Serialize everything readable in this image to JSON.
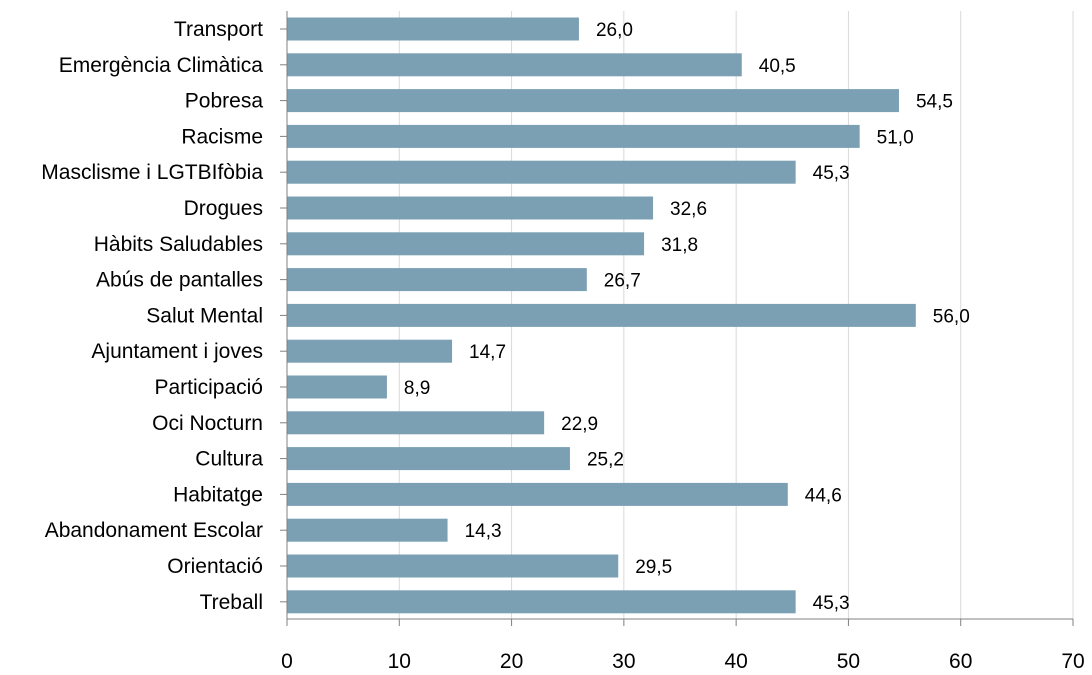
{
  "chart_data": {
    "type": "bar",
    "orientation": "horizontal",
    "categories": [
      "Transport",
      "Emergència Climàtica",
      "Pobresa",
      "Racisme",
      "Masclisme i LGTBIfòbia",
      "Drogues",
      "Hàbits Saludables",
      "Abús de pantalles",
      "Salut Mental",
      "Ajuntament i joves",
      "Participació",
      "Oci Nocturn",
      "Cultura",
      "Habitatge",
      "Abandonament Escolar",
      "Orientació",
      "Treball"
    ],
    "values": [
      26.0,
      40.5,
      54.5,
      51.0,
      45.3,
      32.6,
      31.8,
      26.7,
      56.0,
      14.7,
      8.9,
      22.9,
      25.2,
      44.6,
      14.3,
      29.5,
      45.3
    ],
    "value_labels": [
      "26,0",
      "40,5",
      "54,5",
      "51,0",
      "45,3",
      "32,6",
      "31,8",
      "26,7",
      "56,0",
      "14,7",
      "8,9",
      "22,9",
      "25,2",
      "44,6",
      "14,3",
      "29,5",
      "45,3"
    ],
    "x_ticks": [
      "0",
      "10",
      "20",
      "30",
      "40",
      "50",
      "60",
      "70"
    ],
    "xlim": [
      0,
      70
    ],
    "grid": "vertical",
    "bar_color": "#7ba0b4",
    "grid_color": "#d9d9d9",
    "axis_color": "#808080",
    "title": "",
    "xlabel": "",
    "ylabel": ""
  }
}
